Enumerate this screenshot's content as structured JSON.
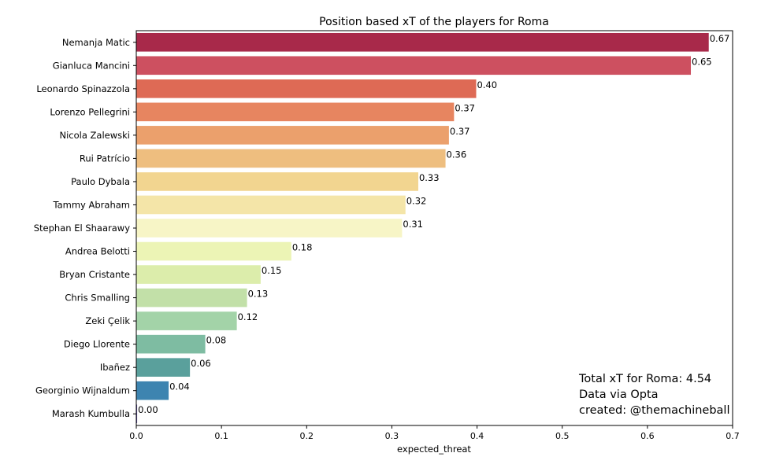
{
  "chart_data": {
    "type": "bar",
    "orientation": "horizontal",
    "title": "Position based xT of the players for Roma",
    "xlabel": "expected_threat",
    "ylabel": "",
    "xlim": [
      0,
      0.7
    ],
    "xticks": [
      "0.0",
      "0.1",
      "0.2",
      "0.3",
      "0.4",
      "0.5",
      "0.6",
      "0.7"
    ],
    "grid": false,
    "categories": [
      "Nemanja Matic",
      "Gianluca Mancini",
      "Leonardo Spinazzola",
      "Lorenzo Pellegrini",
      "Nicola Zalewski",
      "Rui Patrício",
      "Paulo Dybala",
      "Tammy Abraham",
      "Stephan El Shaarawy",
      "Andrea Belotti",
      "Bryan Cristante",
      "Chris Smalling",
      "Zeki Çelik",
      "Diego Llorente",
      "Ibañez",
      "Georginio Wijnaldum",
      "Marash Kumbulla"
    ],
    "values": [
      0.672,
      0.651,
      0.399,
      0.373,
      0.367,
      0.363,
      0.331,
      0.316,
      0.312,
      0.182,
      0.146,
      0.13,
      0.118,
      0.081,
      0.063,
      0.038,
      0.001
    ],
    "value_labels": [
      "0.67",
      "0.65",
      "0.40",
      "0.37",
      "0.37",
      "0.36",
      "0.33",
      "0.32",
      "0.31",
      "0.18",
      "0.15",
      "0.13",
      "0.12",
      "0.08",
      "0.06",
      "0.04",
      "0.00"
    ],
    "colors": [
      "#a8294a",
      "#cd5060",
      "#de6a55",
      "#e78560",
      "#eba06c",
      "#eebe7f",
      "#f2d590",
      "#f4e5a8",
      "#f7f5c6",
      "#ecf4b5",
      "#dcedab",
      "#c2e0a8",
      "#a3d3a8",
      "#7ebca2",
      "#5aa09c",
      "#3d84b0",
      "#5e4fa2"
    ],
    "annotations": [
      "Total xT for Roma: 4.54",
      "Data via Opta",
      "created: @themachineball"
    ]
  }
}
